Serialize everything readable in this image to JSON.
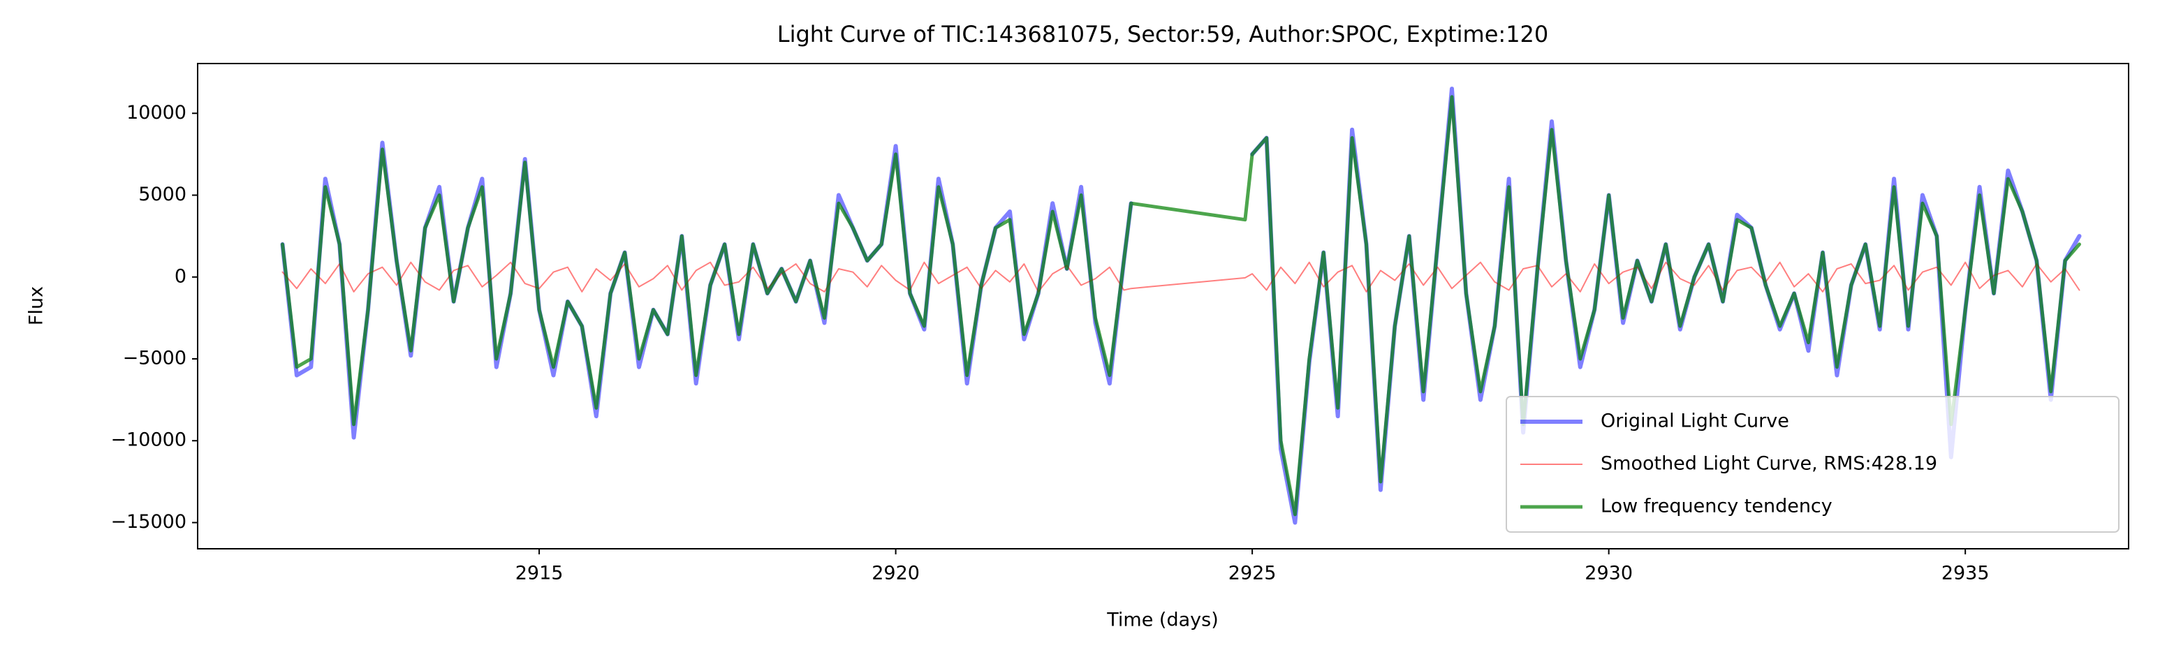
{
  "chart_data": {
    "type": "line",
    "title": "Light Curve of TIC:143681075, Sector:59, Author:SPOC, Exptime:120",
    "x_label": "Time (days)",
    "y_label": "Flux",
    "xlim": [
      2910.21,
      2937.29
    ],
    "ylim": [
      -16600,
      13040
    ],
    "xticks": [
      2915,
      2920,
      2925,
      2930,
      2935
    ],
    "yticks": [
      {
        "value": -15000,
        "label": "−15000"
      },
      {
        "value": -10000,
        "label": "−10000"
      },
      {
        "value": -5000,
        "label": "−5000"
      },
      0,
      5000,
      10000
    ],
    "legend": "lower right",
    "x": [
      2911.4,
      2911.6,
      2911.8,
      2912.0,
      2912.2,
      2912.4,
      2912.6,
      2912.8,
      2913.0,
      2913.2,
      2913.4,
      2913.6,
      2913.8,
      2914.0,
      2914.2,
      2914.4,
      2914.6,
      2914.8,
      2915.0,
      2915.2,
      2915.4,
      2915.6,
      2915.8,
      2916.0,
      2916.2,
      2916.4,
      2916.6,
      2916.8,
      2917.0,
      2917.2,
      2917.4,
      2917.6,
      2917.8,
      2918.0,
      2918.2,
      2918.4,
      2918.6,
      2918.8,
      2919.0,
      2919.2,
      2919.4,
      2919.6,
      2919.8,
      2920.0,
      2920.2,
      2920.4,
      2920.6,
      2920.8,
      2921.0,
      2921.2,
      2921.4,
      2921.6,
      2921.8,
      2922.0,
      2922.2,
      2922.4,
      2922.6,
      2922.8,
      2923.0,
      2923.2,
      2923.3,
      2924.9,
      2925.0,
      2925.2,
      2925.4,
      2925.6,
      2925.8,
      2926.0,
      2926.2,
      2926.4,
      2926.6,
      2926.8,
      2927.0,
      2927.2,
      2927.4,
      2927.6,
      2927.8,
      2928.0,
      2928.2,
      2928.4,
      2928.6,
      2928.8,
      2929.0,
      2929.2,
      2929.4,
      2929.6,
      2929.8,
      2930.0,
      2930.2,
      2930.4,
      2930.6,
      2930.8,
      2931.0,
      2931.2,
      2931.4,
      2931.6,
      2931.8,
      2932.0,
      2932.2,
      2932.4,
      2932.6,
      2932.8,
      2933.0,
      2933.2,
      2933.4,
      2933.6,
      2933.8,
      2934.0,
      2934.2,
      2934.4,
      2934.6,
      2934.8,
      2935.0,
      2935.2,
      2935.4,
      2935.6,
      2935.8,
      2936.0,
      2936.2,
      2936.4,
      2936.6
    ],
    "series": [
      {
        "name": "Original Light Curve",
        "color": "#0000ff",
        "alpha": 0.5,
        "linewidth": 6,
        "values": [
          2000,
          -6000,
          -5500,
          6000,
          2000,
          -9800,
          -2000,
          8200,
          1000,
          -4800,
          3000,
          5500,
          -1500,
          3000,
          6000,
          -5500,
          -1000,
          7200,
          -2000,
          -6000,
          -1500,
          -3000,
          -8500,
          -1000,
          1500,
          -5500,
          -2000,
          -3500,
          2500,
          -6500,
          -500,
          2000,
          -3800,
          2000,
          -1000,
          500,
          -1500,
          1000,
          -2800,
          5000,
          3000,
          1000,
          2000,
          8000,
          -1000,
          -3200,
          6000,
          2000,
          -6500,
          -500,
          3000,
          4000,
          -3800,
          -1000,
          4500,
          500,
          5500,
          -2800,
          -6500,
          1000,
          4500,
          null,
          7500,
          8500,
          -10500,
          -15000,
          -5200,
          1500,
          -8500,
          9000,
          2000,
          -13000,
          -3000,
          2500,
          -7500,
          2000,
          11500,
          -1000,
          -7500,
          -3000,
          6000,
          -9500,
          500,
          9500,
          1000,
          -5500,
          -2000,
          5000,
          -2800,
          1000,
          -1500,
          2000,
          -3200,
          0,
          2000,
          -1500,
          3800,
          3000,
          -500,
          -3200,
          -1000,
          -4500,
          1500,
          -6000,
          -500,
          2000,
          -3200,
          6000,
          -3200,
          5000,
          2500,
          -11000,
          -2000,
          5500,
          -1000,
          6500,
          4000,
          1000,
          -7500,
          1000,
          2500
        ]
      },
      {
        "name": "Smoothed Light Curve, RMS:428.19",
        "color": "#ff0000",
        "alpha": 0.5,
        "linewidth": 2,
        "values": [
          300,
          -700,
          500,
          -400,
          800,
          -900,
          200,
          600,
          -500,
          900,
          -300,
          -800,
          400,
          700,
          -600,
          100,
          900,
          -400,
          -700,
          300,
          600,
          -900,
          500,
          -200,
          800,
          -600,
          -100,
          700,
          -800,
          400,
          900,
          -500,
          -300,
          600,
          -700,
          200,
          800,
          -400,
          -900,
          500,
          300,
          -600,
          700,
          -200,
          -800,
          900,
          -400,
          100,
          600,
          -700,
          400,
          -300,
          800,
          -900,
          200,
          700,
          -500,
          -100,
          600,
          -800,
          -700,
          -50,
          200,
          -800,
          600,
          -400,
          900,
          -600,
          300,
          700,
          -900,
          400,
          -200,
          800,
          -500,
          600,
          -700,
          100,
          900,
          -300,
          -800,
          500,
          700,
          -600,
          200,
          -900,
          800,
          -400,
          300,
          600,
          -700,
          900,
          -100,
          -500,
          700,
          -800,
          400,
          600,
          -300,
          900,
          -600,
          200,
          -900,
          500,
          800,
          -400,
          -200,
          700,
          -800,
          300,
          600,
          -500,
          900,
          -700,
          100,
          400,
          -600,
          800,
          -300,
          500,
          -800
        ]
      },
      {
        "name": "Low frequency tendency",
        "color": "#007f00",
        "alpha": 0.7,
        "linewidth": 5,
        "values": [
          2000,
          -5500,
          -5000,
          5500,
          2000,
          -9000,
          -2000,
          7800,
          1000,
          -4500,
          3000,
          5000,
          -1500,
          3000,
          5500,
          -5000,
          -1000,
          7000,
          -2000,
          -5500,
          -1500,
          -3000,
          -8000,
          -1000,
          1500,
          -5000,
          -2000,
          -3500,
          2500,
          -6000,
          -500,
          2000,
          -3500,
          2000,
          -1000,
          500,
          -1500,
          1000,
          -2500,
          4500,
          3000,
          1000,
          2000,
          7500,
          -1000,
          -3000,
          5500,
          2000,
          -6000,
          -500,
          3000,
          3500,
          -3500,
          -1000,
          4000,
          500,
          5000,
          -2500,
          -6000,
          1000,
          4500,
          3500,
          7500,
          8500,
          -10000,
          -14500,
          -5000,
          1500,
          -8000,
          8500,
          2000,
          -12500,
          -3000,
          2500,
          -7000,
          2000,
          11000,
          -1000,
          -7000,
          -3000,
          5500,
          -9000,
          500,
          9000,
          1000,
          -5000,
          -2000,
          5000,
          -2500,
          1000,
          -1500,
          2000,
          -3000,
          0,
          2000,
          -1500,
          3500,
          3000,
          -500,
          -3000,
          -1000,
          -4000,
          1500,
          -5500,
          -500,
          2000,
          -3000,
          5500,
          -3000,
          4500,
          2500,
          -9000,
          -2000,
          5000,
          -1000,
          6000,
          4000,
          1000,
          -7000,
          1000,
          2000
        ]
      }
    ]
  }
}
